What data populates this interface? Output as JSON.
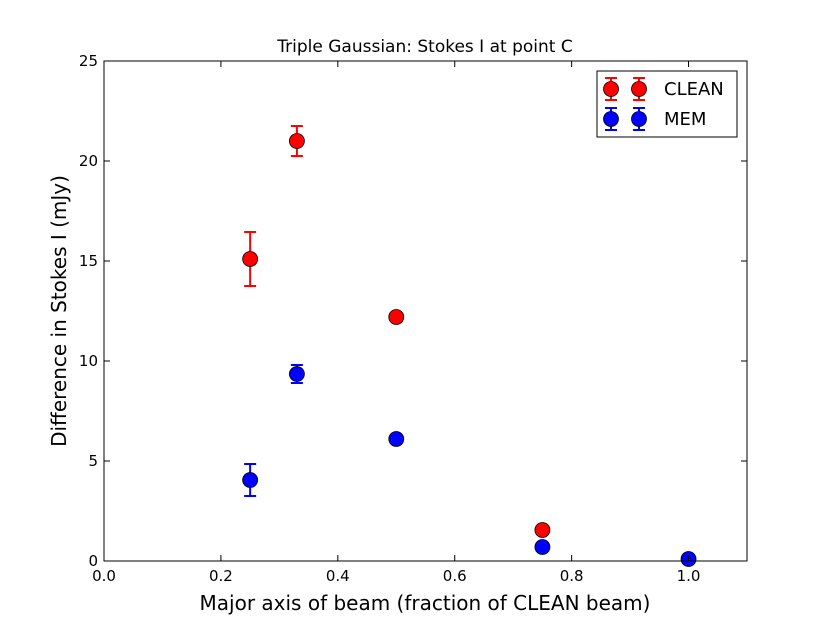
{
  "chart_data": {
    "type": "scatter",
    "title": "Triple Gaussian: Stokes I at point C",
    "xlabel": "Major axis of beam (fraction of CLEAN beam)",
    "ylabel": "Difference in Stokes I (mJy)",
    "xlim": [
      0.0,
      1.1
    ],
    "ylim": [
      0,
      25
    ],
    "x_ticks": [
      "0.0",
      "0.2",
      "0.4",
      "0.6",
      "0.8",
      "1.0"
    ],
    "y_ticks": [
      "0",
      "5",
      "10",
      "15",
      "20",
      "25"
    ],
    "legend_position": "top-right",
    "grid": false,
    "series": [
      {
        "name": "CLEAN",
        "color": "#ff0000",
        "points": [
          {
            "x": 0.25,
            "y": 15.1,
            "err": 1.35
          },
          {
            "x": 0.33,
            "y": 21.0,
            "err": 0.75
          },
          {
            "x": 0.5,
            "y": 12.2,
            "err": 0.2
          },
          {
            "x": 0.75,
            "y": 1.55,
            "err": 0.1
          }
        ]
      },
      {
        "name": "MEM",
        "color": "#0000ff",
        "points": [
          {
            "x": 0.25,
            "y": 4.05,
            "err": 0.8
          },
          {
            "x": 0.33,
            "y": 9.35,
            "err": 0.45
          },
          {
            "x": 0.5,
            "y": 6.1,
            "err": 0.1
          },
          {
            "x": 0.75,
            "y": 0.7,
            "err": 0.05
          },
          {
            "x": 1.0,
            "y": 0.1,
            "err": 0.05
          }
        ]
      }
    ]
  }
}
